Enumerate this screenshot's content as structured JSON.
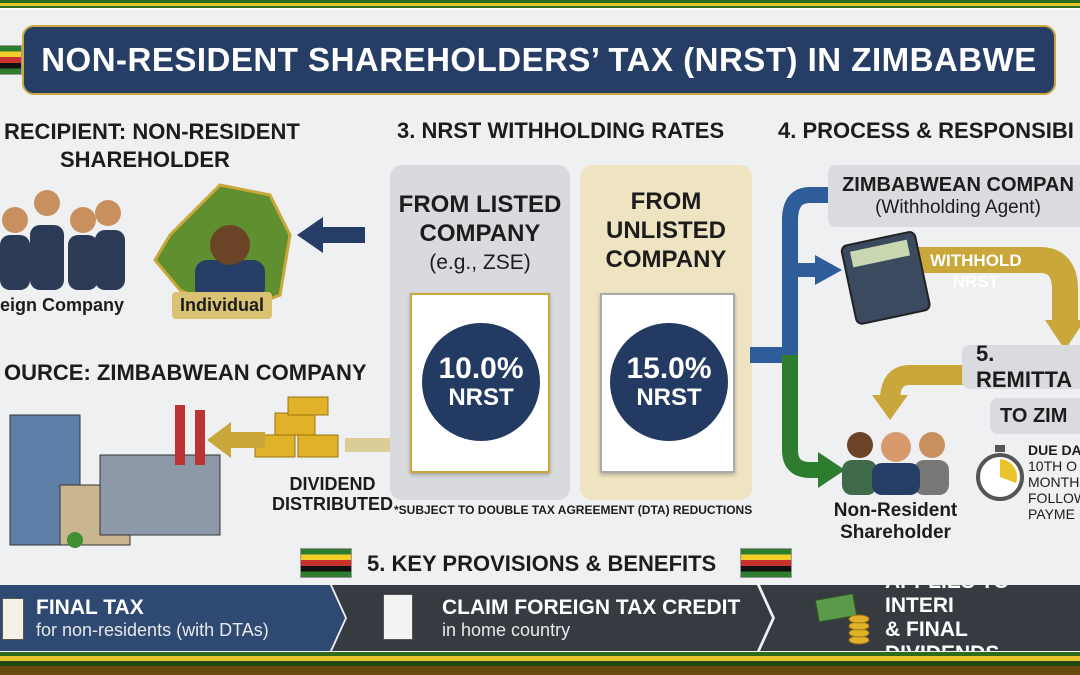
{
  "title": "NON-RESIDENT SHAREHOLDERS’ TAX (NRST) IN ZIMBABWE",
  "recipient": {
    "heading_line1": "RECIPIENT: NON-RESIDENT",
    "heading_line2": "SHAREHOLDER",
    "foreign_label": "eign Company",
    "individual_label": "Individual"
  },
  "source": {
    "heading": "OURCE: ZIMBABWEAN COMPANY",
    "dividend_line1": "DIVIDEND",
    "dividend_line2": "DISTRIBUTED"
  },
  "rates": {
    "heading": "3. NRST WITHHOLDING RATES",
    "listed": {
      "line1": "FROM LISTED",
      "line2": "COMPANY",
      "note": "(e.g., ZSE)",
      "rate": "10.0%",
      "tax": "NRST"
    },
    "unlisted": {
      "line1": "FROM",
      "line2": "UNLISTED",
      "line3": "COMPANY",
      "rate": "15.0%",
      "tax": "NRST"
    },
    "footnote": "*SUBJECT TO DOUBLE TAX AGREEMENT (DTA) REDUCTIONS"
  },
  "process": {
    "heading": "4. PROCESS & RESPONSIBI",
    "company": "ZIMBABWEAN COMPAN",
    "company_role": "(Withholding Agent)",
    "withhold_line1": "WITHHOLD",
    "withhold_line2": "NRST",
    "remit": "5. REMITTA",
    "remit_to": "TO ZIM",
    "shareholder_line1": "Non-Resident",
    "shareholder_line2": "Shareholder",
    "due": [
      "DUE DA",
      "10TH O",
      "MONTH",
      "FOLLOW",
      "PAYME"
    ]
  },
  "provisions": {
    "heading": "5. KEY PROVISIONS & BENEFITS",
    "items": [
      {
        "title": "FINAL TAX",
        "sub": "for non-residents (with DTAs)"
      },
      {
        "title": "CLAIM FOREIGN TAX CREDIT",
        "sub": "in home country"
      },
      {
        "title": "APPLIES TO INTERI",
        "sub": "& FINAL DIVIDENDS"
      }
    ]
  },
  "colors": {
    "navy": "#263e66",
    "gold": "#c9a73a",
    "green": "#2e7d2e",
    "blue": "#2f5d9a"
  }
}
